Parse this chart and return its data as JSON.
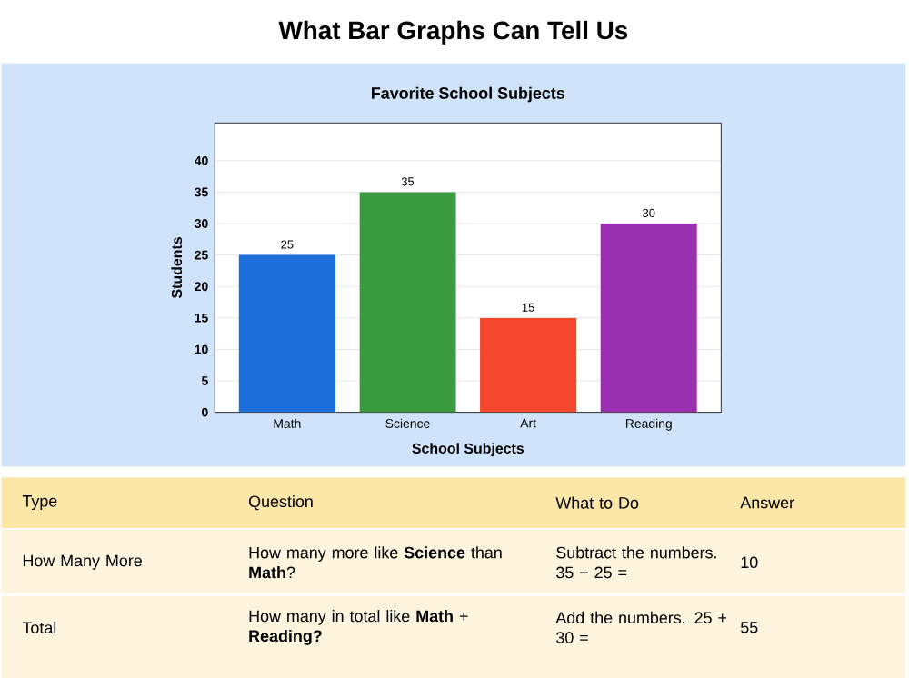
{
  "chart_data": {
    "type": "bar",
    "title": "Favorite School Subjects",
    "xlabel": "School Subjects",
    "ylabel": "Students",
    "categories": [
      "Math",
      "Science",
      "Art",
      "Reading"
    ],
    "values": [
      25,
      35,
      15,
      30
    ],
    "colors": [
      "#1a6fdc",
      "#3a9a3f",
      "#f4472d",
      "#9a2fb0"
    ],
    "ylim": [
      0,
      46
    ],
    "yticks": [
      0,
      5,
      10,
      15,
      20,
      25,
      30,
      35,
      40
    ],
    "grid": "y",
    "data_labels": true,
    "annotations": [
      "What Bar Graphs Can Tell Us",
      "Type",
      "Question",
      "What to Do",
      "Answer",
      "How Many More",
      "How many more like **Science** than **Math**?",
      "Subtract the numbers. 35 − 25 =",
      "10",
      "Total",
      "How many in total like **Math** + **Reading?**",
      "Add the numbers. 25 + 30 =",
      "55"
    ]
  }
}
